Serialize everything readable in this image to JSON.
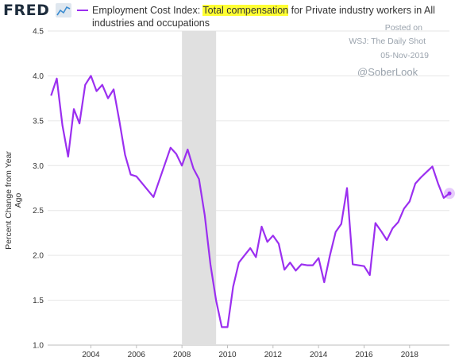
{
  "header": {
    "logo_text": "FRED",
    "logo_icon": "line-chart-icon",
    "legend_prefix": "Employment Cost Index: ",
    "legend_highlight": "Total compensation",
    "legend_suffix": " for Private industry workers in All industries and occupations"
  },
  "watermark": {
    "posted_on": "Posted on",
    "source": "WSJ: The Daily Shot",
    "date": "05-Nov-2019",
    "handle": "@SoberLook"
  },
  "colors": {
    "series": "#9b2ff0",
    "recession": "#e0e0e0",
    "highlight": "#ffff33"
  },
  "chart_data": {
    "type": "line",
    "title": "Employment Cost Index: Total compensation for Private industry workers in All industries and occupations",
    "ylabel": "Percent Change from Year Ago",
    "xlabel": "",
    "ylim": [
      1.0,
      4.5
    ],
    "xlim": [
      2002.1,
      2019.75
    ],
    "yticks": [
      "1.0",
      "1.5",
      "2.0",
      "2.5",
      "3.0",
      "3.5",
      "4.0",
      "4.5"
    ],
    "xticks": [
      "2004",
      "2006",
      "2008",
      "2010",
      "2012",
      "2014",
      "2016",
      "2018"
    ],
    "grid": "horizontal",
    "recession_shading": [
      2008.0,
      2009.5
    ],
    "series": [
      {
        "name": "Employment Cost Index: Total compensation",
        "x": [
          2002.25,
          2002.5,
          2002.75,
          2003.0,
          2003.25,
          2003.5,
          2003.75,
          2004.0,
          2004.25,
          2004.5,
          2004.75,
          2005.0,
          2005.25,
          2005.5,
          2005.75,
          2006.0,
          2006.75,
          2007.5,
          2007.75,
          2008.0,
          2008.25,
          2008.5,
          2008.75,
          2009.0,
          2009.25,
          2009.5,
          2009.75,
          2010.0,
          2010.25,
          2010.5,
          2010.75,
          2011.0,
          2011.25,
          2011.5,
          2011.75,
          2012.0,
          2012.25,
          2012.5,
          2012.75,
          2013.0,
          2013.25,
          2013.5,
          2013.75,
          2014.0,
          2014.25,
          2014.5,
          2014.75,
          2015.0,
          2015.25,
          2015.5,
          2015.75,
          2016.0,
          2016.25,
          2016.5,
          2016.75,
          2017.0,
          2017.25,
          2017.5,
          2017.75,
          2018.0,
          2018.25,
          2018.5,
          2018.75,
          2019.0,
          2019.25,
          2019.5
        ],
        "values": [
          3.78,
          3.97,
          3.45,
          3.1,
          3.63,
          3.47,
          3.9,
          4.0,
          3.83,
          3.9,
          3.75,
          3.85,
          3.5,
          3.12,
          2.9,
          2.88,
          2.65,
          3.2,
          3.13,
          3.0,
          3.18,
          2.97,
          2.85,
          2.45,
          1.9,
          1.5,
          1.2,
          1.2,
          1.65,
          1.92,
          2.0,
          2.08,
          1.98,
          2.32,
          2.15,
          2.22,
          2.13,
          1.84,
          1.92,
          1.83,
          1.9,
          1.89,
          1.89,
          1.97,
          1.7,
          2.0,
          2.26,
          2.35,
          2.75,
          1.9,
          1.89,
          1.88,
          1.78,
          2.36,
          2.27,
          2.17,
          2.3,
          2.37,
          2.52,
          2.6,
          2.8,
          2.87,
          2.93,
          2.99,
          2.8,
          2.64
        ],
        "last_point": [
          2019.75,
          2.69
        ]
      }
    ]
  }
}
